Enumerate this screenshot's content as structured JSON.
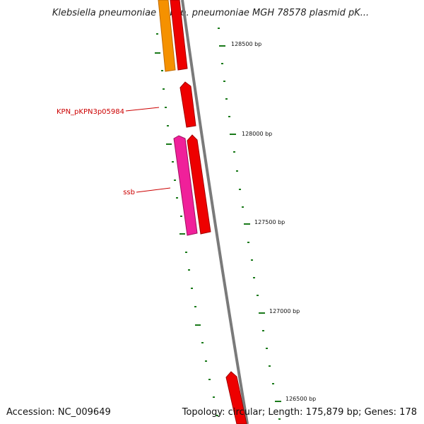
{
  "title": "Klebsiella pneumoniae subsp. pneumoniae MGH 78578 plasmid pK...",
  "accession": "Accession: NC_009649",
  "topology": "Topology: circular; Length: 175,879 bp; Genes: 178",
  "scale_ticks": [
    {
      "label": "128500 bp"
    },
    {
      "label": "128000 bp"
    },
    {
      "label": "127500 bp"
    },
    {
      "label": "127000 bp"
    },
    {
      "label": "126500 bp"
    }
  ],
  "gene_labels": [
    {
      "text": "KPN_pKPN3p05984",
      "color": "#cc0000"
    },
    {
      "text": "ssb",
      "color": "#cc0000"
    }
  ],
  "colors": {
    "backbone": "#7a7a7a",
    "tick": "#1a7a1a",
    "gene_red": "#ee0000",
    "gene_orange": "#f59100",
    "gene_magenta": "#f0209a",
    "leader": "#cc0000"
  }
}
